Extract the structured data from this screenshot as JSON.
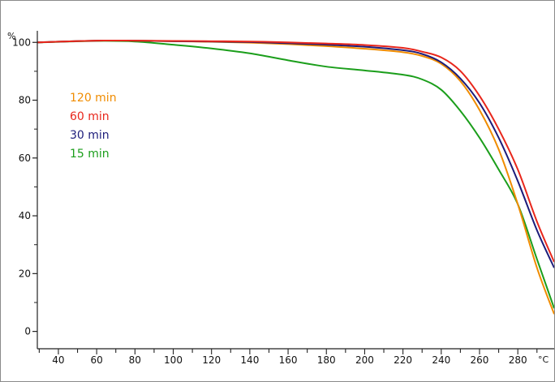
{
  "chart_data": {
    "type": "line",
    "title": "",
    "xlabel": "°C",
    "ylabel": "%",
    "xlim": [
      29,
      299
    ],
    "ylim": [
      -6,
      104
    ],
    "x_ticks": [
      40,
      60,
      80,
      100,
      120,
      140,
      160,
      180,
      200,
      220,
      240,
      260,
      280
    ],
    "x_tick_labels": [
      "40",
      "60",
      "80",
      "100",
      "120",
      "140",
      "160",
      "180",
      "200",
      "220",
      "240",
      "260",
      "280"
    ],
    "y_ticks": [
      0,
      20,
      40,
      60,
      80,
      100
    ],
    "y_tick_labels": [
      "0",
      "20",
      "40",
      "60",
      "80",
      "100"
    ],
    "grid": false,
    "legend_placement": "top-left",
    "series": [
      {
        "name": "120 min",
        "color": "#f08c00",
        "x": [
          29,
          60,
          80,
          100,
          120,
          140,
          160,
          180,
          200,
          220,
          230,
          240,
          250,
          260,
          270,
          280,
          290,
          299
        ],
        "y": [
          100.0,
          100.6,
          100.6,
          100.4,
          100.2,
          99.9,
          99.4,
          98.7,
          97.8,
          96.6,
          95.3,
          92.6,
          86.6,
          76.6,
          63.0,
          44.0,
          22.0,
          6.0
        ]
      },
      {
        "name": "60 min",
        "color": "#e8261b",
        "x": [
          29,
          60,
          80,
          100,
          120,
          140,
          160,
          180,
          200,
          220,
          230,
          240,
          250,
          260,
          270,
          280,
          290,
          299
        ],
        "y": [
          100.0,
          100.6,
          100.6,
          100.5,
          100.4,
          100.3,
          100.0,
          99.6,
          99.1,
          98.1,
          96.8,
          94.8,
          90.1,
          81.5,
          70.0,
          56.0,
          38.0,
          24.0
        ]
      },
      {
        "name": "30 min",
        "color": "#1c1c7a",
        "x": [
          29,
          60,
          80,
          100,
          120,
          140,
          160,
          180,
          200,
          220,
          230,
          240,
          250,
          260,
          270,
          280,
          290,
          299
        ],
        "y": [
          100.0,
          100.6,
          100.6,
          100.4,
          100.3,
          100.1,
          99.7,
          99.2,
          98.5,
          97.3,
          96.0,
          93.1,
          87.5,
          79.0,
          67.0,
          52.0,
          35.0,
          22.0
        ]
      },
      {
        "name": "15 min",
        "color": "#1b9e1b",
        "x": [
          29,
          60,
          80,
          100,
          120,
          140,
          160,
          180,
          200,
          220,
          230,
          240,
          250,
          260,
          270,
          280,
          290,
          299
        ],
        "y": [
          100.0,
          100.5,
          100.3,
          99.2,
          97.9,
          96.2,
          93.8,
          91.6,
          90.3,
          88.8,
          87.2,
          83.6,
          76.3,
          67.0,
          56.0,
          44.0,
          25.0,
          8.0
        ]
      }
    ]
  }
}
